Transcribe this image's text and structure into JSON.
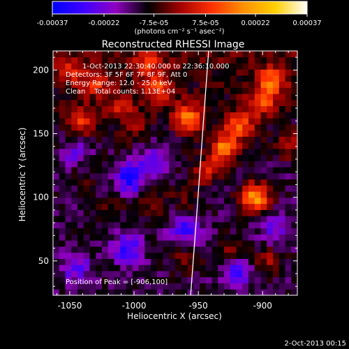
{
  "colorbar": {
    "ticks": [
      "-0.00037",
      "-0.00022",
      "-7.5e-05",
      "7.5e-05",
      "0.00022",
      "0.00037"
    ],
    "tick_values": [
      -0.00037,
      -0.00022,
      -7.5e-05,
      7.5e-05,
      0.00022,
      0.00037
    ],
    "unit": "(photons cm⁻² s⁻¹ asec⁻²)",
    "colors": [
      "#0000ff",
      "#4000ff",
      "#9000c0",
      "#000000",
      "#a00000",
      "#ff3000",
      "#ff9000",
      "#ffd000",
      "#ffffff"
    ]
  },
  "chart_data": {
    "type": "heatmap",
    "title": "Reconstructed RHESSI Image",
    "xlabel": "Heliocentric X (arcsec)",
    "ylabel": "Heliocentric Y (arcsec)",
    "xlim": [
      -1063,
      -873
    ],
    "ylim": [
      23,
      215
    ],
    "xticks": [
      -1050,
      -1000,
      -950,
      -900
    ],
    "xtick_labels": [
      "-1050",
      "-1000",
      "-950",
      "-900"
    ],
    "yticks": [
      50,
      100,
      150,
      200
    ],
    "ytick_labels": [
      "50",
      "100",
      "150",
      "200"
    ],
    "annotations": [
      "1-Oct-2013 22:30:40.000 to 22:36:10.000",
      "Detectors: 3F 5F 6F 7F 8F 9F, Att 0",
      "Energy Range: 12.0 - 25.0 keV",
      "Clean    Total counts: 1.13E+04"
    ],
    "peak_label": "Position of Peak = [-906,100]",
    "peak": [
      -906,
      100
    ],
    "limb_x": [
      -956,
      -951,
      -946,
      -942
    ],
    "limb_y": [
      23,
      90,
      160,
      215
    ],
    "intensity_range": [
      -0.00037,
      0.00037
    ],
    "hotspots": [
      {
        "x": -906,
        "y": 100,
        "value": 0.00037
      },
      {
        "x": -930,
        "y": 138,
        "value": 0.0003
      },
      {
        "x": -958,
        "y": 163,
        "value": 0.00027
      },
      {
        "x": -918,
        "y": 157,
        "value": 0.00024
      },
      {
        "x": -893,
        "y": 192,
        "value": 0.00022
      },
      {
        "x": -900,
        "y": 175,
        "value": 0.0002
      },
      {
        "x": -980,
        "y": 185,
        "value": 0.0002
      },
      {
        "x": -945,
        "y": 120,
        "value": 0.00018
      },
      {
        "x": -1040,
        "y": 160,
        "value": 0.00018
      },
      {
        "x": -1030,
        "y": 190,
        "value": 0.00016
      },
      {
        "x": -1010,
        "y": 172,
        "value": 0.00014
      },
      {
        "x": -1050,
        "y": 200,
        "value": 0.00012
      },
      {
        "x": -990,
        "y": 205,
        "value": 0.00016
      },
      {
        "x": -1000,
        "y": 155,
        "value": 0.0001
      },
      {
        "x": -895,
        "y": 50,
        "value": 0.00012
      },
      {
        "x": -960,
        "y": 50,
        "value": 0.0001
      },
      {
        "x": -880,
        "y": 140,
        "value": 0.00012
      },
      {
        "x": -1040,
        "y": 115,
        "value": 6e-05
      },
      {
        "x": -1020,
        "y": 92,
        "value": 8e-05
      },
      {
        "x": -985,
        "y": 95,
        "value": 0.0001
      },
      {
        "x": -960,
        "y": 100,
        "value": 8e-05
      },
      {
        "x": -925,
        "y": 60,
        "value": 0.0001
      },
      {
        "x": -1003,
        "y": 115,
        "value": -0.00025
      },
      {
        "x": -1005,
        "y": 60,
        "value": -0.0002
      },
      {
        "x": -1045,
        "y": 45,
        "value": -0.00015
      },
      {
        "x": -960,
        "y": 75,
        "value": -0.0002
      },
      {
        "x": -920,
        "y": 40,
        "value": -0.00018
      },
      {
        "x": -1045,
        "y": 135,
        "value": -0.00012
      },
      {
        "x": -985,
        "y": 130,
        "value": -0.00015
      },
      {
        "x": -890,
        "y": 75,
        "value": -0.00012
      }
    ]
  },
  "footer": {
    "date": "2-Oct-2013 00:15"
  }
}
